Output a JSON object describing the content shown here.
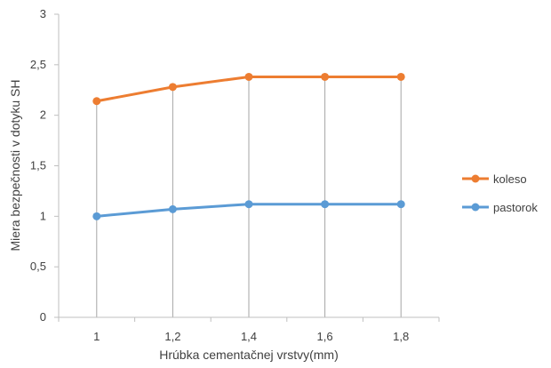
{
  "chart_data": {
    "type": "line",
    "categories": [
      "1",
      "1,2",
      "1,4",
      "1,6",
      "1,8"
    ],
    "series": [
      {
        "name": "koleso",
        "color": "#ED7D31",
        "values": [
          2.14,
          2.28,
          2.38,
          2.38,
          2.38
        ]
      },
      {
        "name": "pastorok",
        "color": "#5B9BD5",
        "values": [
          1.0,
          1.07,
          1.12,
          1.12,
          1.12
        ]
      }
    ],
    "title": "",
    "xlabel": "Hrúbka cementačnej vrstvy(mm)",
    "ylabel": "Miera bezpečnosti v dotyku SH",
    "ylim": [
      0,
      3
    ],
    "yticks": [
      {
        "value": 0,
        "label": "0"
      },
      {
        "value": 0.5,
        "label": "0,5"
      },
      {
        "value": 1,
        "label": "1"
      },
      {
        "value": 1.5,
        "label": "1,5"
      },
      {
        "value": 2,
        "label": "2"
      },
      {
        "value": 2.5,
        "label": "2,5"
      },
      {
        "value": 3,
        "label": "3"
      }
    ],
    "grid": "vertical drop lines at categories",
    "legend": "right"
  }
}
